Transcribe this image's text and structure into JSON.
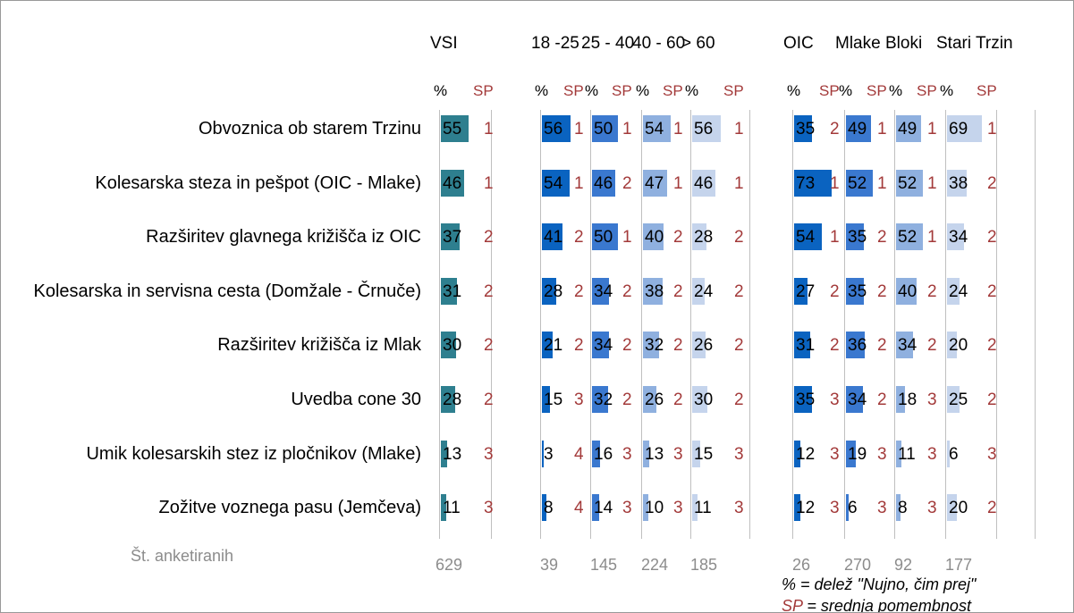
{
  "pct_label": "%",
  "sp_label": "SP",
  "n_label": "Št. anketiranih",
  "note_pct": "% = delež \"Nujno, čim prej\"",
  "note_sp": " = srednja pomembnost",
  "rows": [
    "Obvoznica ob starem Trzinu",
    "Kolesarska steza in pešpot (OIC - Mlake)",
    "Razširitev glavnega križišča iz OIC",
    "Kolesarska in servisna cesta (Domžale - Črnuče)",
    "Razširitev križišča iz Mlak",
    "Uvedba cone 30",
    "Umik kolesarskih stez iz pločnikov (Mlake)",
    "Zožitve voznega pasu (Jemčeva)"
  ],
  "columns": [
    {
      "name": "VSI",
      "color": "#2e7f8f",
      "n": 629,
      "values": [
        55,
        46,
        37,
        31,
        30,
        28,
        13,
        11
      ],
      "sp": [
        1,
        1,
        2,
        2,
        2,
        2,
        3,
        3
      ]
    },
    {
      "name": "18 -25",
      "color": "#0a63c0",
      "n": 39,
      "values": [
        56,
        54,
        41,
        28,
        21,
        15,
        3,
        8
      ],
      "sp": [
        1,
        1,
        2,
        2,
        2,
        3,
        4,
        4
      ]
    },
    {
      "name": "25 - 40",
      "color": "#3a78cf",
      "n": 145,
      "values": [
        50,
        46,
        50,
        34,
        34,
        32,
        16,
        14
      ],
      "sp": [
        1,
        2,
        1,
        2,
        2,
        2,
        3,
        3
      ]
    },
    {
      "name": "40 - 60",
      "color": "#8fb0df",
      "n": 224,
      "values": [
        54,
        47,
        40,
        38,
        32,
        26,
        13,
        10
      ],
      "sp": [
        1,
        1,
        2,
        2,
        2,
        2,
        3,
        3
      ]
    },
    {
      "name": "> 60",
      "color": "#c5d4ec",
      "n": 185,
      "values": [
        56,
        46,
        28,
        24,
        26,
        30,
        15,
        11
      ],
      "sp": [
        1,
        1,
        2,
        2,
        2,
        2,
        3,
        3
      ]
    },
    {
      "name": "OIC",
      "color": "#0a63c0",
      "n": 26,
      "values": [
        35,
        73,
        54,
        27,
        31,
        35,
        12,
        12
      ],
      "sp": [
        2,
        1,
        1,
        2,
        2,
        3,
        3,
        3
      ]
    },
    {
      "name": "Mlake",
      "color": "#3a78cf",
      "n": 270,
      "values": [
        49,
        52,
        35,
        35,
        36,
        34,
        19,
        6
      ],
      "sp": [
        1,
        1,
        2,
        2,
        2,
        2,
        3,
        3
      ]
    },
    {
      "name": "Bloki",
      "color": "#8fb0df",
      "n": 92,
      "values": [
        49,
        52,
        52,
        40,
        34,
        18,
        11,
        8
      ],
      "sp": [
        1,
        1,
        1,
        2,
        2,
        3,
        3,
        3
      ]
    },
    {
      "name": "Stari Trzin",
      "color": "#c5d4ec",
      "n": 177,
      "values": [
        69,
        38,
        34,
        24,
        20,
        25,
        6,
        20
      ],
      "sp": [
        1,
        2,
        2,
        2,
        2,
        2,
        3,
        2
      ]
    }
  ]
}
